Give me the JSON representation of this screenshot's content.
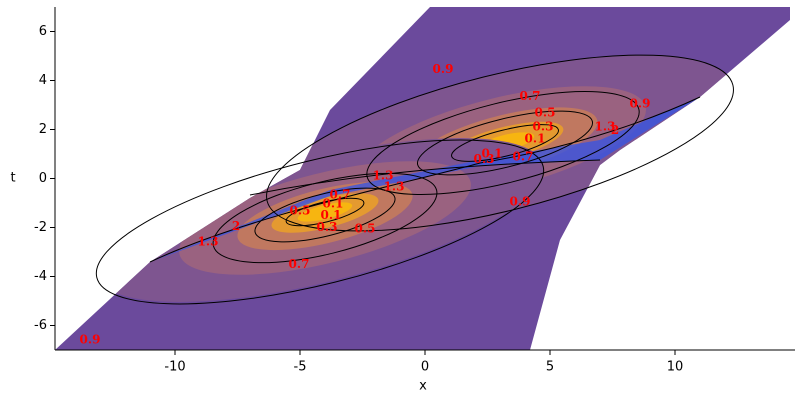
{
  "chart_data": {
    "type": "contour",
    "x_label": "x",
    "y_label": "t",
    "xlim": [
      -14.8,
      14.8
    ],
    "ylim": [
      -7,
      7
    ],
    "xticks": [
      -10,
      -5,
      0,
      5,
      10
    ],
    "yticks": [
      -6,
      -4,
      -2,
      0,
      2,
      4,
      6
    ],
    "label_color": "#ff0000",
    "contour_labels": [
      {
        "x": 0.72,
        "t": 4.45,
        "value": 0.9
      },
      {
        "x": 4.2,
        "t": 3.34,
        "value": 0.7
      },
      {
        "x": 8.6,
        "t": 3.05,
        "value": 0.9
      },
      {
        "x": 4.8,
        "t": 2.68,
        "value": 0.5
      },
      {
        "x": 4.72,
        "t": 2.11,
        "value": 0.3
      },
      {
        "x": 4.4,
        "t": 1.62,
        "value": 0.1
      },
      {
        "x": 7.2,
        "t": 2.11,
        "value": 1.3
      },
      {
        "x": 7.6,
        "t": 1.95,
        "value": 2.0
      },
      {
        "x": 2.68,
        "t": 1.0,
        "value": 0.1
      },
      {
        "x": 2.36,
        "t": 0.78,
        "value": 0.3
      },
      {
        "x": 3.92,
        "t": 0.88,
        "value": 0.7
      },
      {
        "x": -1.68,
        "t": 0.1,
        "value": 1.3
      },
      {
        "x": -1.24,
        "t": -0.35,
        "value": 1.3
      },
      {
        "x": 3.8,
        "t": -0.96,
        "value": 0.9
      },
      {
        "x": -3.4,
        "t": -0.68,
        "value": 0.7
      },
      {
        "x": -3.68,
        "t": -1.05,
        "value": 0.1
      },
      {
        "x": -5.0,
        "t": -1.33,
        "value": 0.5
      },
      {
        "x": -3.76,
        "t": -1.5,
        "value": 0.1
      },
      {
        "x": -3.92,
        "t": -1.99,
        "value": 0.3
      },
      {
        "x": -2.4,
        "t": -2.07,
        "value": 0.5
      },
      {
        "x": -7.56,
        "t": -1.95,
        "value": 2.0
      },
      {
        "x": -8.68,
        "t": -2.6,
        "value": 1.3
      },
      {
        "x": -5.04,
        "t": -3.5,
        "value": 0.7
      },
      {
        "x": -13.4,
        "t": -6.6,
        "value": 0.9
      }
    ]
  }
}
